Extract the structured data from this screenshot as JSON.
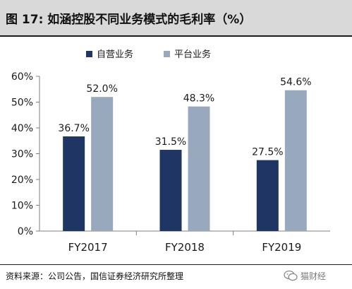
{
  "header": {
    "title": "图 17:  如涵控股不同业务模式的毛利率（%）"
  },
  "colors": {
    "series_1": "#1f3664",
    "series_2": "#98a9be",
    "axis": "#7f7f7f",
    "grid": "#bfbfbf",
    "title_bar": "#d9d9d9"
  },
  "chart_data": {
    "type": "bar",
    "categories": [
      "FY2017",
      "FY2018",
      "FY2019"
    ],
    "series": [
      {
        "name": "自营业务",
        "values": [
          36.7,
          31.5,
          27.5
        ],
        "labels": [
          "36.7%",
          "31.5%",
          "27.5%"
        ]
      },
      {
        "name": "平台业务",
        "values": [
          52.0,
          48.3,
          54.6
        ],
        "labels": [
          "52.0%",
          "48.3%",
          "54.6%"
        ]
      }
    ],
    "ylim": [
      0,
      60
    ],
    "yticks": [
      0,
      10,
      20,
      30,
      40,
      50,
      60
    ],
    "ytick_labels": [
      "0%",
      "10%",
      "20%",
      "30%",
      "40%",
      "50%",
      "60%"
    ],
    "xlabel": "",
    "ylabel": "",
    "legend_position": "top",
    "grid": false
  },
  "footer": {
    "source": "资料来源：公司公告，国信证券经济研究所整理",
    "watermark_text": "猫财经",
    "watermark_icon": "wechat-icon"
  }
}
